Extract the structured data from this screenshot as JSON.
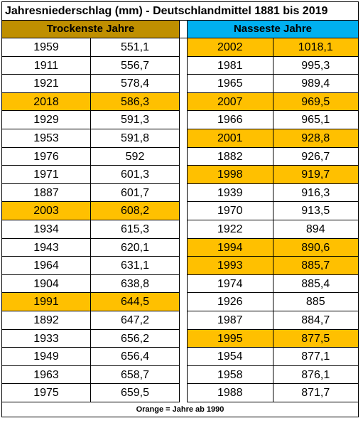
{
  "title": "Jahresniederschlag (mm) - Deutschlandmittel 1881 bis 2019",
  "headers": {
    "left": "Trockenste Jahre",
    "right": "Nasseste Jahre"
  },
  "colors": {
    "left_header": "#bf8f00",
    "right_header": "#00b0f0",
    "highlight": "#ffc000"
  },
  "left_rows": [
    {
      "year": "1959",
      "value": "551,1",
      "highlight": false
    },
    {
      "year": "1911",
      "value": "556,7",
      "highlight": false
    },
    {
      "year": "1921",
      "value": "578,4",
      "highlight": false
    },
    {
      "year": "2018",
      "value": "586,3",
      "highlight": true
    },
    {
      "year": "1929",
      "value": "591,3",
      "highlight": false
    },
    {
      "year": "1953",
      "value": "591,8",
      "highlight": false
    },
    {
      "year": "1976",
      "value": "592",
      "highlight": false
    },
    {
      "year": "1971",
      "value": "601,3",
      "highlight": false
    },
    {
      "year": "1887",
      "value": "601,7",
      "highlight": false
    },
    {
      "year": "2003",
      "value": "608,2",
      "highlight": true
    },
    {
      "year": "1934",
      "value": "615,3",
      "highlight": false
    },
    {
      "year": "1943",
      "value": "620,1",
      "highlight": false
    },
    {
      "year": "1964",
      "value": "631,1",
      "highlight": false
    },
    {
      "year": "1904",
      "value": "638,8",
      "highlight": false
    },
    {
      "year": "1991",
      "value": "644,5",
      "highlight": true
    },
    {
      "year": "1892",
      "value": "647,2",
      "highlight": false
    },
    {
      "year": "1933",
      "value": "656,2",
      "highlight": false
    },
    {
      "year": "1949",
      "value": "656,4",
      "highlight": false
    },
    {
      "year": "1963",
      "value": "658,7",
      "highlight": false
    },
    {
      "year": "1975",
      "value": "659,5",
      "highlight": false
    }
  ],
  "right_rows": [
    {
      "year": "2002",
      "value": "1018,1",
      "highlight": true
    },
    {
      "year": "1981",
      "value": "995,3",
      "highlight": false
    },
    {
      "year": "1965",
      "value": "989,4",
      "highlight": false
    },
    {
      "year": "2007",
      "value": "969,5",
      "highlight": true
    },
    {
      "year": "1966",
      "value": "965,1",
      "highlight": false
    },
    {
      "year": "2001",
      "value": "928,8",
      "highlight": true
    },
    {
      "year": "1882",
      "value": "926,7",
      "highlight": false
    },
    {
      "year": "1998",
      "value": "919,7",
      "highlight": true
    },
    {
      "year": "1939",
      "value": "916,3",
      "highlight": false
    },
    {
      "year": "1970",
      "value": "913,5",
      "highlight": false
    },
    {
      "year": "1922",
      "value": "894",
      "highlight": false
    },
    {
      "year": "1994",
      "value": "890,6",
      "highlight": true
    },
    {
      "year": "1993",
      "value": "885,7",
      "highlight": true
    },
    {
      "year": "1974",
      "value": "885,4",
      "highlight": false
    },
    {
      "year": "1926",
      "value": "885",
      "highlight": false
    },
    {
      "year": "1987",
      "value": "884,7",
      "highlight": false
    },
    {
      "year": "1995",
      "value": "877,5",
      "highlight": true
    },
    {
      "year": "1954",
      "value": "877,1",
      "highlight": false
    },
    {
      "year": "1958",
      "value": "876,1",
      "highlight": false
    },
    {
      "year": "1988",
      "value": "871,7",
      "highlight": false
    }
  ],
  "footer": "Orange = Jahre ab 1990"
}
